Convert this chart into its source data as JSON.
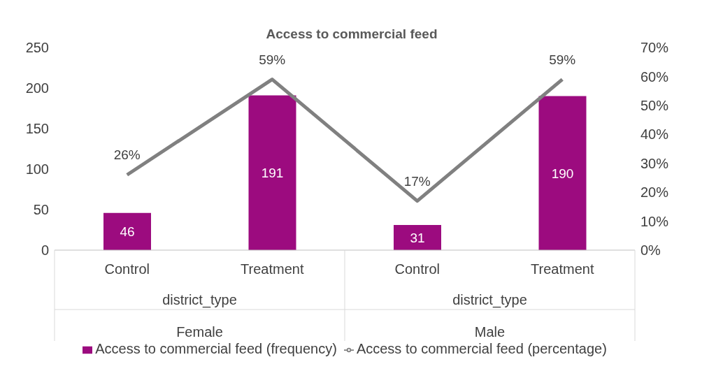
{
  "chart_data": {
    "type": "bar",
    "title": "Access to commercial feed",
    "categories": [
      "Control",
      "Treatment",
      "Control",
      "Treatment"
    ],
    "annotations": [
      "district_type",
      "Female",
      "district_type",
      "Male"
    ],
    "series": [
      {
        "name": "Access to commercial feed (frequency)",
        "color": "#9c0b7f",
        "values": [
          46,
          191,
          31,
          190
        ]
      },
      {
        "name": "Access to commercial feed (percentage)",
        "type": "line",
        "axis": "y2",
        "color": "#808080",
        "values": [
          26,
          59,
          17,
          59
        ],
        "value_labels": [
          "26%",
          "59%",
          "17%",
          "59%"
        ]
      }
    ],
    "data_labels": true,
    "ylim": [
      0,
      250
    ],
    "yticks": [
      0,
      50,
      100,
      150,
      200,
      250
    ],
    "y2lim": [
      0,
      70
    ],
    "y2ticks": [
      {
        "value": 0,
        "label": "0%"
      },
      {
        "value": 10,
        "label": "10%"
      },
      {
        "value": 20,
        "label": "20%"
      },
      {
        "value": 30,
        "label": "30%"
      },
      {
        "value": 40,
        "label": "40%"
      },
      {
        "value": 50,
        "label": "50%"
      },
      {
        "value": 60,
        "label": "60%"
      },
      {
        "value": 70,
        "label": "70%"
      }
    ],
    "grid": false,
    "legend": "bottom",
    "marker": "none",
    "line_style": "solid"
  }
}
